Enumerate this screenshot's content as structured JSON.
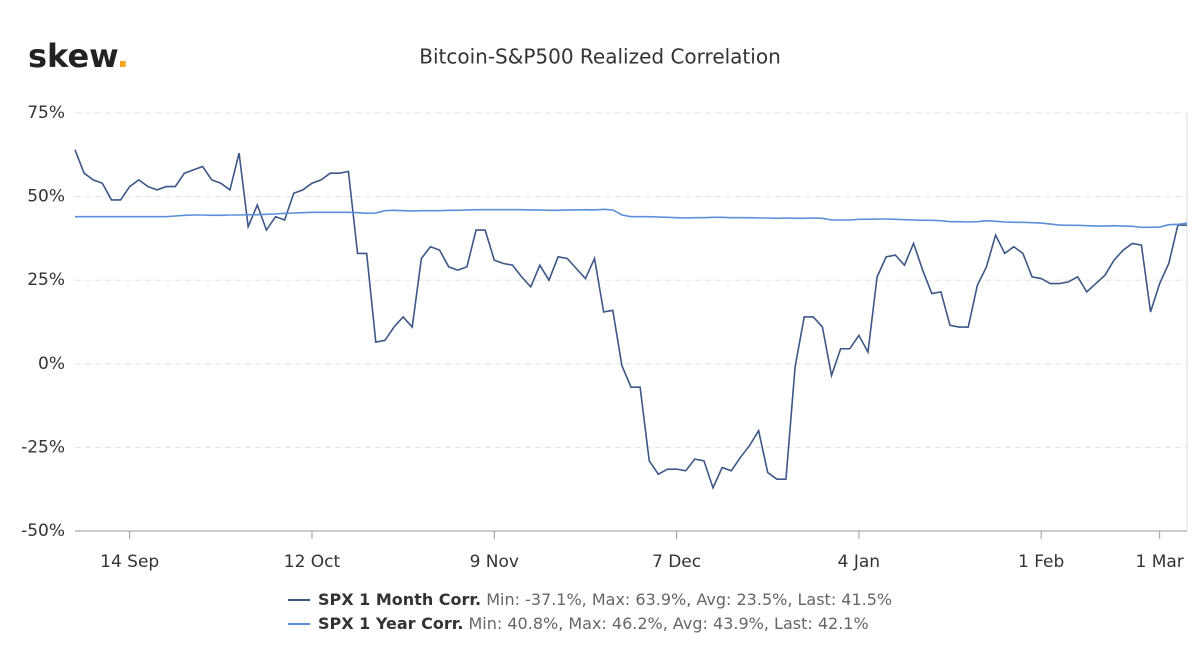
{
  "logo": {
    "text": "skew",
    "dot": "."
  },
  "chart_data": {
    "type": "line",
    "title": "Bitcoin-S&P500 Realized Correlation",
    "categories": [
      null,
      null,
      null,
      null,
      null,
      null,
      "14 Sep",
      null,
      null,
      null,
      null,
      null,
      null,
      null,
      null,
      null,
      null,
      null,
      null,
      null,
      null,
      null,
      null,
      null,
      null,
      null,
      "12 Oct",
      null,
      null,
      null,
      null,
      null,
      null,
      null,
      null,
      null,
      null,
      null,
      null,
      null,
      null,
      null,
      null,
      null,
      null,
      null,
      "9 Nov",
      null,
      null,
      null,
      null,
      null,
      null,
      null,
      null,
      null,
      null,
      null,
      null,
      null,
      null,
      null,
      null,
      null,
      null,
      null,
      "7 Dec",
      null,
      null,
      null,
      null,
      null,
      null,
      null,
      null,
      null,
      null,
      null,
      null,
      null,
      null,
      null,
      null,
      null,
      null,
      null,
      "4 Jan",
      null,
      null,
      null,
      null,
      null,
      null,
      null,
      null,
      null,
      null,
      null,
      null,
      null,
      null,
      null,
      null,
      null,
      null,
      null,
      "1 Feb",
      null,
      null,
      null,
      null,
      null,
      null,
      null,
      null,
      null,
      null,
      null,
      null,
      "1 Mar",
      null,
      null,
      null
    ],
    "series": [
      {
        "name": "SPX 1 Month Corr.",
        "stats": "Min: -37.1%, Max: 63.9%, Avg: 23.5%, Last: 41.5%",
        "color": "#3d5788",
        "values": [
          64,
          57,
          55,
          54,
          49,
          49,
          53,
          55,
          53,
          52,
          53,
          53,
          57,
          58,
          59,
          55,
          54,
          52,
          63,
          41,
          47.5,
          40,
          44,
          43,
          51,
          52,
          54,
          55,
          57,
          57,
          57.5,
          33,
          33,
          6.5,
          7,
          11,
          14,
          11,
          31.5,
          35,
          34,
          29,
          28,
          29,
          40,
          40,
          31,
          30,
          29.5,
          26,
          23,
          29.5,
          25,
          32,
          31.5,
          28.5,
          25.5,
          31.5,
          15.5,
          16,
          -0.5,
          -7,
          -7,
          -29,
          -33,
          -31.5,
          -31.5,
          -32,
          -28.5,
          -29,
          -37.1,
          -31,
          -32,
          -28,
          -24.5,
          -20,
          -32.5,
          -34.5,
          -34.5,
          -1,
          14,
          14,
          11,
          -3.5,
          4.5,
          4.5,
          8.5,
          3.5,
          26,
          32,
          32.5,
          29.5,
          36,
          28,
          21,
          21.5,
          11.5,
          11,
          11,
          23.5,
          29,
          38.5,
          33,
          35,
          33,
          26,
          25.5,
          24,
          24,
          24.5,
          26,
          21.5,
          24,
          26.5,
          31,
          34,
          36,
          35.5,
          15.5,
          24,
          30,
          41.5,
          41.5
        ]
      },
      {
        "name": "SPX 1 Year Corr.",
        "stats": "Min: 40.8%, Max: 46.2%, Avg: 43.9%, Last: 42.1%",
        "color": "#5b8fd8",
        "values": [
          44,
          44,
          44,
          44,
          44,
          44,
          44,
          44,
          44,
          44,
          44,
          44.2,
          44.4,
          44.5,
          44.5,
          44.4,
          44.4,
          44.5,
          44.5,
          44.6,
          44.6,
          44.7,
          44.8,
          45,
          45.1,
          45.2,
          45.3,
          45.3,
          45.3,
          45.3,
          45.3,
          45.2,
          45,
          45.1,
          45.8,
          45.9,
          45.8,
          45.7,
          45.8,
          45.8,
          45.8,
          45.9,
          45.9,
          46,
          46.1,
          46.1,
          46.1,
          46.1,
          46.1,
          46.1,
          46,
          46,
          45.9,
          45.9,
          46,
          46,
          46.1,
          46,
          46.2,
          46,
          44.5,
          44,
          44,
          44,
          43.9,
          43.8,
          43.7,
          43.6,
          43.7,
          43.7,
          43.8,
          43.8,
          43.7,
          43.7,
          43.7,
          43.6,
          43.6,
          43.5,
          43.6,
          43.5,
          43.5,
          43.6,
          43.5,
          43,
          43,
          43,
          43.2,
          43.2,
          43.3,
          43.3,
          43.2,
          43.1,
          43,
          42.9,
          42.9,
          42.8,
          42.5,
          42.5,
          42.4,
          42.5,
          42.8,
          42.6,
          42.4,
          42.3,
          42.3,
          42.2,
          42.1,
          41.8,
          41.5,
          41.4,
          41.4,
          41.3,
          41.2,
          41.2,
          41.3,
          41.2,
          41.1,
          40.8,
          40.8,
          40.9,
          41.6,
          41.7,
          42.1
        ]
      }
    ],
    "ylim": [
      -50,
      75
    ],
    "yticks": [
      {
        "value": 75,
        "label": "75%"
      },
      {
        "value": 50,
        "label": "50%"
      },
      {
        "value": 25,
        "label": "25%"
      },
      {
        "value": 0,
        "label": "0%"
      },
      {
        "value": -25,
        "label": "-25%"
      },
      {
        "value": -50,
        "label": "-50%"
      }
    ],
    "grid": true
  }
}
